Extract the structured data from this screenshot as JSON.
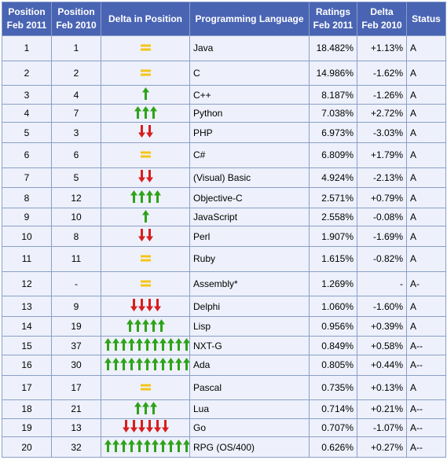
{
  "colors": {
    "header_bg": "#4a64b4",
    "row_bg": "#eef1fb",
    "border": "#8a9fc7",
    "up": "#2ea319",
    "down": "#d81e1e",
    "same": "#f5c518",
    "language_link": "#2a2aa0"
  },
  "headers": {
    "pos_2011": [
      "Position",
      "Feb 2011"
    ],
    "pos_2010": [
      "Position",
      "Feb 2010"
    ],
    "delta": "Delta in Position",
    "language": "Programming Language",
    "ratings": [
      "Ratings",
      "Feb 2011"
    ],
    "delta_rating": [
      "Delta",
      "Feb 2010"
    ],
    "status": "Status"
  },
  "rows": [
    {
      "pos_2011": "1",
      "pos_2010": "1",
      "delta_icon": "equal-icon",
      "delta_count": 0,
      "language": "Java",
      "rating": "18.482%",
      "delta": "+1.13%",
      "status": "A"
    },
    {
      "pos_2011": "2",
      "pos_2010": "2",
      "delta_icon": "equal-icon",
      "delta_count": 0,
      "language": "C",
      "rating": "14.986%",
      "delta": "-1.62%",
      "status": "A"
    },
    {
      "pos_2011": "3",
      "pos_2010": "4",
      "delta_icon": "up-arrow-icon",
      "delta_count": 1,
      "language": "C++",
      "rating": "8.187%",
      "delta": "-1.26%",
      "status": "A"
    },
    {
      "pos_2011": "4",
      "pos_2010": "7",
      "delta_icon": "up-arrow-icon",
      "delta_count": 3,
      "language": "Python",
      "rating": "7.038%",
      "delta": "+2.72%",
      "status": "A"
    },
    {
      "pos_2011": "5",
      "pos_2010": "3",
      "delta_icon": "down-arrow-icon",
      "delta_count": 2,
      "language": "PHP",
      "rating": "6.973%",
      "delta": "-3.03%",
      "status": "A"
    },
    {
      "pos_2011": "6",
      "pos_2010": "6",
      "delta_icon": "equal-icon",
      "delta_count": 0,
      "language": "C#",
      "rating": "6.809%",
      "delta": "+1.79%",
      "status": "A"
    },
    {
      "pos_2011": "7",
      "pos_2010": "5",
      "delta_icon": "down-arrow-icon",
      "delta_count": 2,
      "language": "(Visual) Basic",
      "rating": "4.924%",
      "delta": "-2.13%",
      "status": "A"
    },
    {
      "pos_2011": "8",
      "pos_2010": "12",
      "delta_icon": "up-arrow-icon",
      "delta_count": 4,
      "language": "Objective-C",
      "rating": "2.571%",
      "delta": "+0.79%",
      "status": "A"
    },
    {
      "pos_2011": "9",
      "pos_2010": "10",
      "delta_icon": "up-arrow-icon",
      "delta_count": 1,
      "language": "JavaScript",
      "rating": "2.558%",
      "delta": "-0.08%",
      "status": "A"
    },
    {
      "pos_2011": "10",
      "pos_2010": "8",
      "delta_icon": "down-arrow-icon",
      "delta_count": 2,
      "language": "Perl",
      "rating": "1.907%",
      "delta": "-1.69%",
      "status": "A"
    },
    {
      "pos_2011": "11",
      "pos_2010": "11",
      "delta_icon": "equal-icon",
      "delta_count": 0,
      "language": "Ruby",
      "rating": "1.615%",
      "delta": "-0.82%",
      "status": "A"
    },
    {
      "pos_2011": "12",
      "pos_2010": "-",
      "delta_icon": "equal-icon",
      "delta_count": 0,
      "language": "Assembly*",
      "rating": "1.269%",
      "delta": "-",
      "status": "A-"
    },
    {
      "pos_2011": "13",
      "pos_2010": "9",
      "delta_icon": "down-arrow-icon",
      "delta_count": 4,
      "language": "Delphi",
      "rating": "1.060%",
      "delta": "-1.60%",
      "status": "A"
    },
    {
      "pos_2011": "14",
      "pos_2010": "19",
      "delta_icon": "up-arrow-icon",
      "delta_count": 5,
      "language": "Lisp",
      "rating": "0.956%",
      "delta": "+0.39%",
      "status": "A"
    },
    {
      "pos_2011": "15",
      "pos_2010": "37",
      "delta_icon": "up-arrow-icon",
      "delta_count": 11,
      "language": "NXT-G",
      "rating": "0.849%",
      "delta": "+0.58%",
      "status": "A--"
    },
    {
      "pos_2011": "16",
      "pos_2010": "30",
      "delta_icon": "up-arrow-icon",
      "delta_count": 11,
      "language": "Ada",
      "rating": "0.805%",
      "delta": "+0.44%",
      "status": "A--"
    },
    {
      "pos_2011": "17",
      "pos_2010": "17",
      "delta_icon": "equal-icon",
      "delta_count": 0,
      "language": "Pascal",
      "rating": "0.735%",
      "delta": "+0.13%",
      "status": "A"
    },
    {
      "pos_2011": "18",
      "pos_2010": "21",
      "delta_icon": "up-arrow-icon",
      "delta_count": 3,
      "language": "Lua",
      "rating": "0.714%",
      "delta": "+0.21%",
      "status": "A--"
    },
    {
      "pos_2011": "19",
      "pos_2010": "13",
      "delta_icon": "down-arrow-icon",
      "delta_count": 6,
      "language": "Go",
      "rating": "0.707%",
      "delta": "-1.07%",
      "status": "A--"
    },
    {
      "pos_2011": "20",
      "pos_2010": "32",
      "delta_icon": "up-arrow-icon",
      "delta_count": 11,
      "language": "RPG (OS/400)",
      "rating": "0.626%",
      "delta": "+0.27%",
      "status": "A--"
    }
  ]
}
